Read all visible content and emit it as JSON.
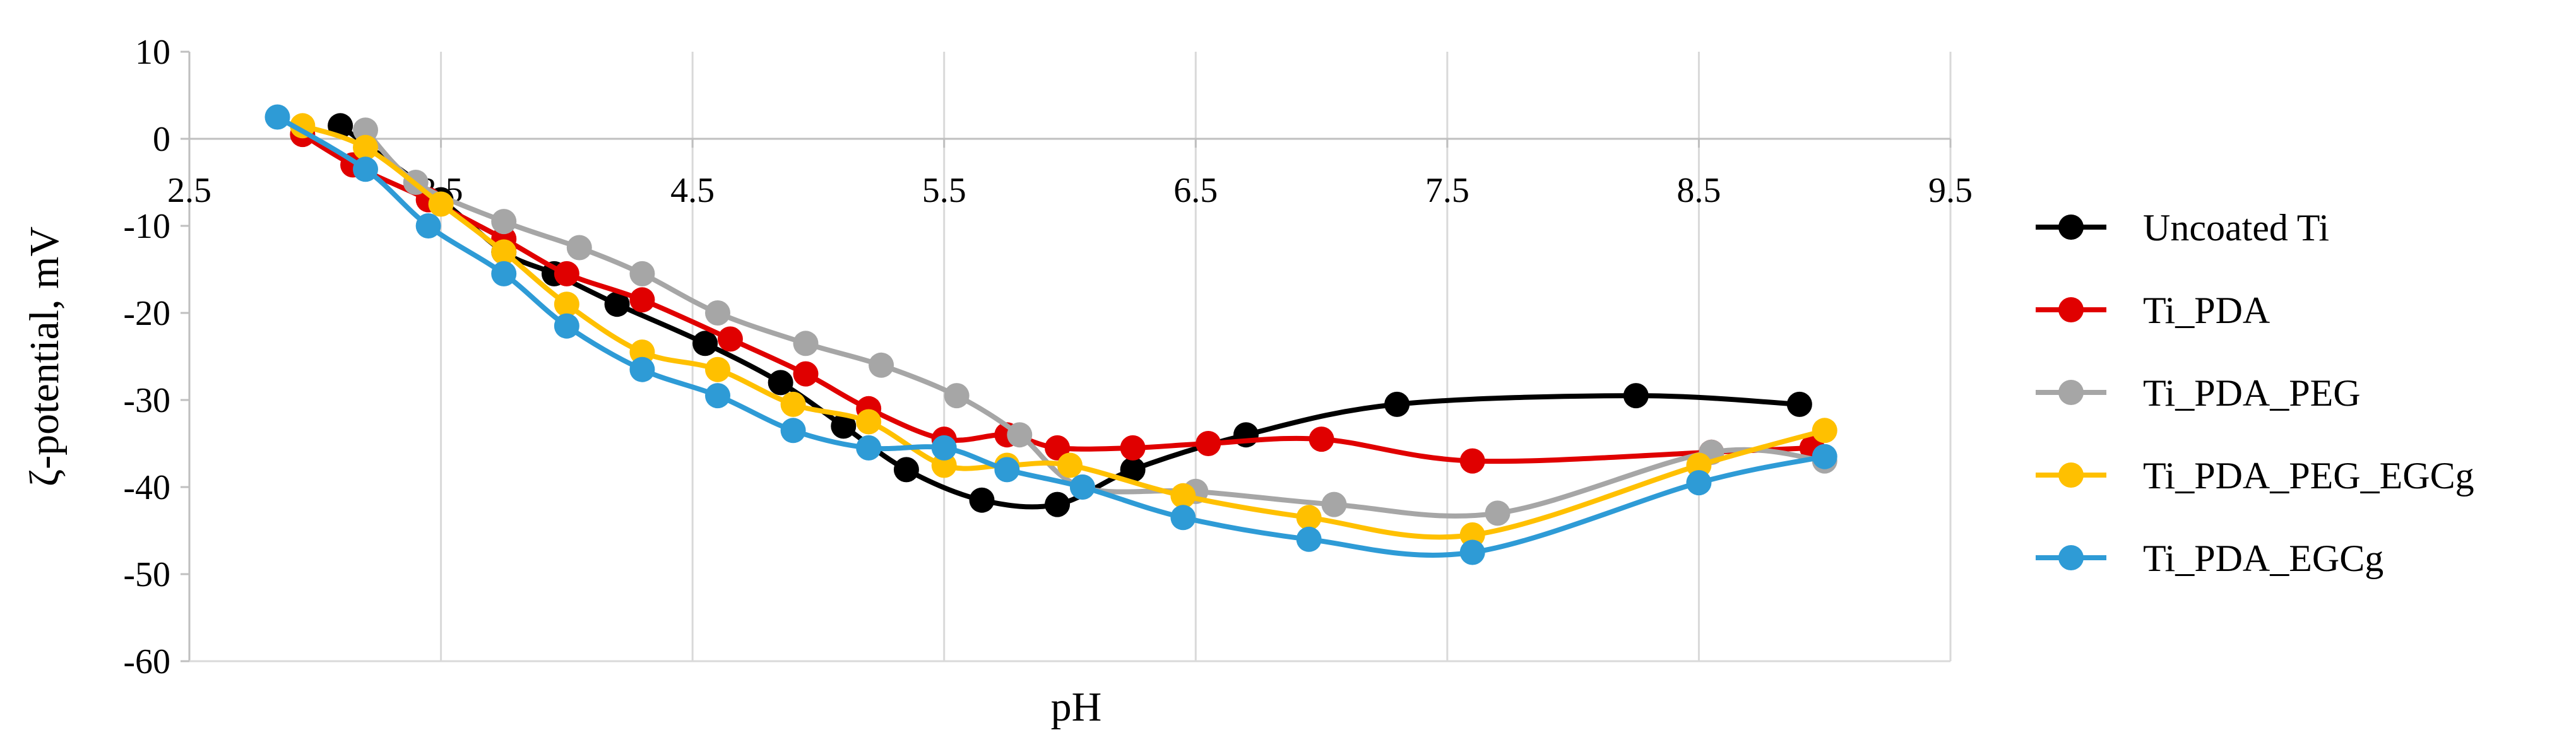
{
  "chart_data": {
    "type": "line",
    "title": "",
    "xlabel": "pH",
    "ylabel": "ζ-potential, mV",
    "xlim": [
      2.5,
      9.5
    ],
    "ylim": [
      -60,
      10
    ],
    "x_ticks": [
      "2.5",
      "3.5",
      "4.5",
      "5.5",
      "6.5",
      "7.5",
      "8.5",
      "9.5"
    ],
    "y_ticks": [
      "10",
      "0",
      "-10",
      "-20",
      "-30",
      "-40",
      "-50",
      "-60"
    ],
    "grid": "vertical",
    "legend_position": "right",
    "smooth": true,
    "series": [
      {
        "name": "Uncoated Ti",
        "color": "#000000",
        "x": [
          3.1,
          3.5,
          3.75,
          3.95,
          4.2,
          4.55,
          4.85,
          5.1,
          5.35,
          5.65,
          5.95,
          6.25,
          6.7,
          7.3,
          8.25,
          8.9
        ],
        "y": [
          1.5,
          -7,
          -13,
          -15.5,
          -19,
          -23.5,
          -28,
          -33,
          -38,
          -41.5,
          -42,
          -38,
          -34,
          -30.5,
          -29.5,
          -30.5
        ]
      },
      {
        "name": "Ti_PDA",
        "color": "#E00000",
        "x": [
          2.95,
          3.15,
          3.45,
          3.75,
          4.0,
          4.3,
          4.65,
          4.95,
          5.2,
          5.5,
          5.75,
          5.95,
          6.25,
          6.55,
          7.0,
          7.6,
          8.55,
          8.95
        ],
        "y": [
          0.5,
          -3,
          -7,
          -11.5,
          -15.5,
          -18.5,
          -23,
          -27,
          -31,
          -34.5,
          -34,
          -35.5,
          -35.5,
          -35,
          -34.5,
          -37,
          -36,
          -35.5
        ]
      },
      {
        "name": "Ti_PDA_PEG",
        "color": "#A6A6A6",
        "x": [
          3.2,
          3.4,
          3.75,
          4.05,
          4.3,
          4.6,
          4.95,
          5.25,
          5.55,
          5.8,
          6.05,
          6.5,
          7.05,
          7.7,
          8.55,
          9.0
        ],
        "y": [
          1,
          -5,
          -9.5,
          -12.5,
          -15.5,
          -20,
          -23.5,
          -26,
          -29.5,
          -34,
          -40,
          -40.5,
          -42,
          -43,
          -36,
          -37
        ]
      },
      {
        "name": "Ti_PDA_PEG_EGCg",
        "color": "#FFC000",
        "x": [
          2.95,
          3.2,
          3.5,
          3.75,
          4.0,
          4.3,
          4.6,
          4.9,
          5.2,
          5.5,
          5.75,
          6.0,
          6.45,
          6.95,
          7.6,
          8.5,
          9.0
        ],
        "y": [
          1.5,
          -1,
          -7.5,
          -13,
          -19,
          -24.5,
          -26.5,
          -30.5,
          -32.5,
          -37.5,
          -37.5,
          -37.5,
          -41,
          -43.5,
          -45.5,
          -37.5,
          -33.5
        ]
      },
      {
        "name": "Ti_PDA_EGCg",
        "color": "#2E9BD6",
        "x": [
          2.85,
          3.2,
          3.45,
          3.75,
          4.0,
          4.3,
          4.6,
          4.9,
          5.2,
          5.5,
          5.75,
          6.05,
          6.45,
          6.95,
          7.6,
          8.5,
          9.0
        ],
        "y": [
          2.5,
          -3.5,
          -10,
          -15.5,
          -21.5,
          -26.5,
          -29.5,
          -33.5,
          -35.5,
          -35.5,
          -38,
          -40,
          -43.5,
          -46,
          -47.5,
          -39.5,
          -36.5
        ]
      }
    ]
  }
}
